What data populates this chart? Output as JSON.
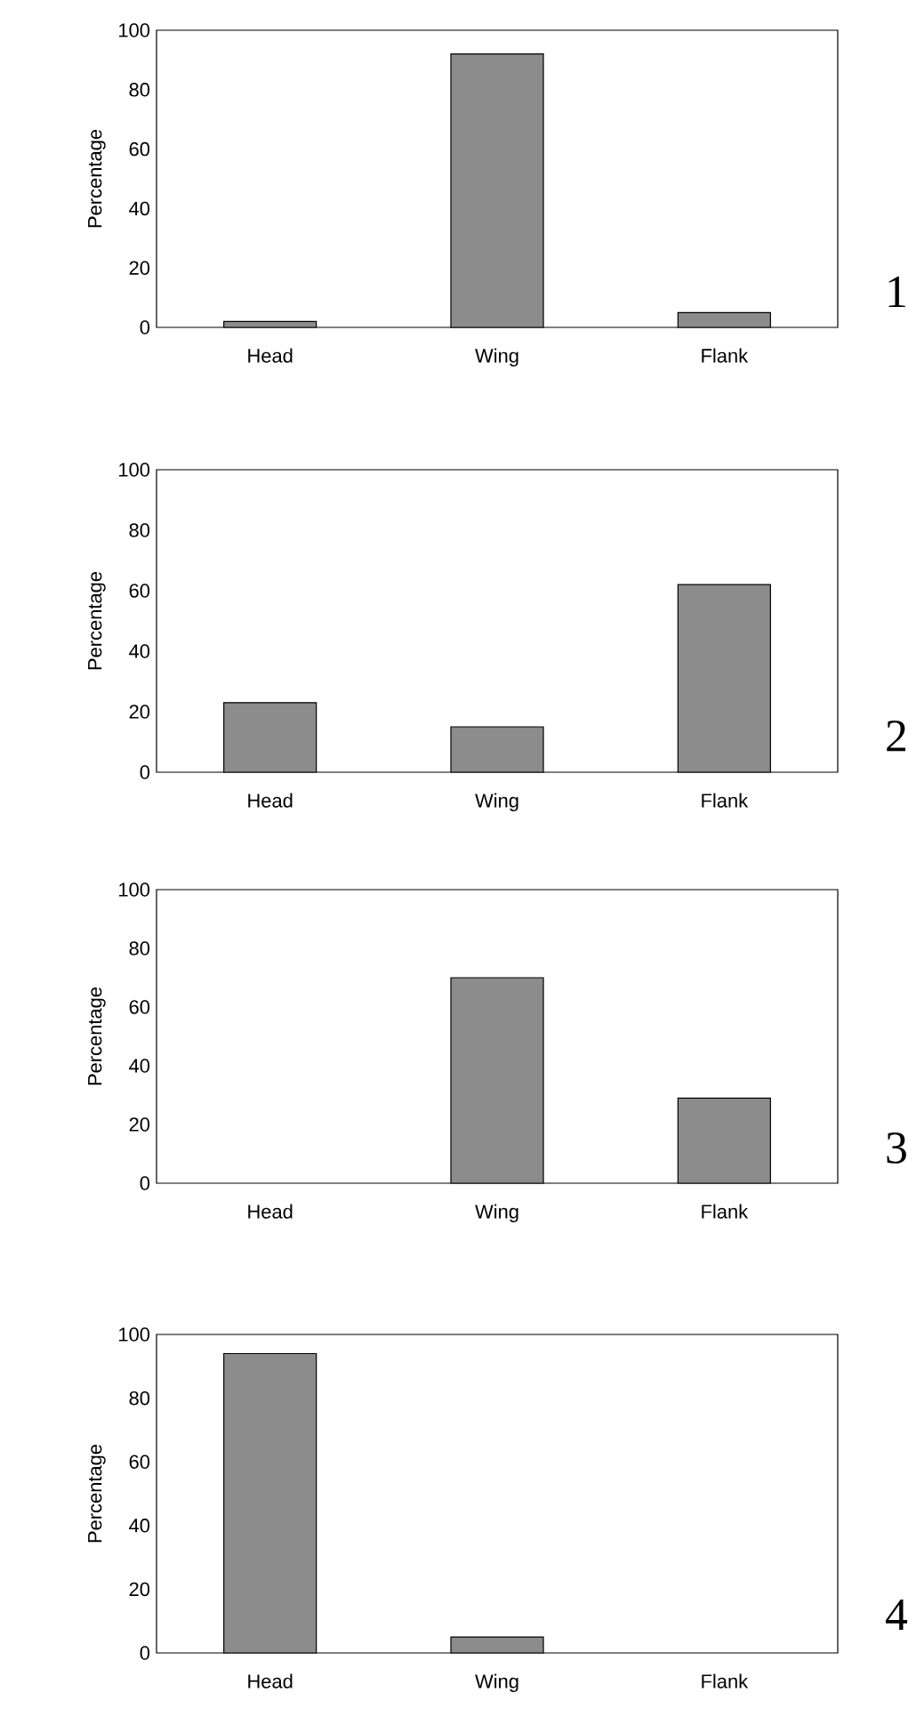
{
  "chart_data": [
    {
      "type": "bar",
      "ylabel": "Percentage",
      "categories": [
        "Head",
        "Wing",
        "Flank"
      ],
      "values": [
        2,
        92,
        5
      ],
      "color": "#8c8c8c",
      "ylim": [
        0,
        100
      ],
      "yticks": [
        0,
        20,
        40,
        60,
        80,
        100
      ],
      "annotations": [
        "1"
      ]
    },
    {
      "type": "bar",
      "ylabel": "Percentage",
      "categories": [
        "Head",
        "Wing",
        "Flank"
      ],
      "values": [
        23,
        15,
        62
      ],
      "color": "#8c8c8c",
      "ylim": [
        0,
        100
      ],
      "yticks": [
        0,
        20,
        40,
        60,
        80,
        100
      ],
      "annotations": [
        "2"
      ]
    },
    {
      "type": "bar",
      "ylabel": "Percentage",
      "categories": [
        "Head",
        "Wing",
        "Flank"
      ],
      "values": [
        0,
        70,
        29
      ],
      "color": "#8c8c8c",
      "ylim": [
        0,
        100
      ],
      "yticks": [
        0,
        20,
        40,
        60,
        80,
        100
      ],
      "annotations": [
        "3"
      ]
    },
    {
      "type": "bar",
      "ylabel": "Percentage",
      "categories": [
        "Head",
        "Wing",
        "Flank"
      ],
      "values": [
        94,
        5,
        0
      ],
      "color": "#8c8c8c",
      "ylim": [
        0,
        100
      ],
      "yticks": [
        0,
        20,
        40,
        60,
        80,
        100
      ],
      "annotations": [
        "4"
      ]
    }
  ]
}
